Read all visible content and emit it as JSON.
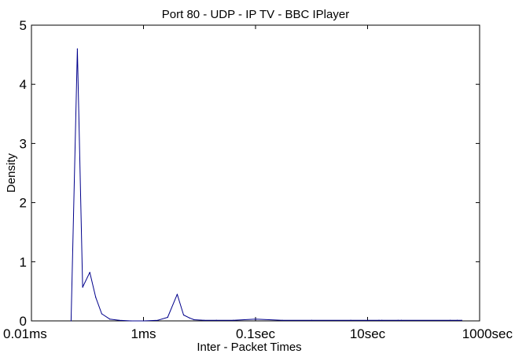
{
  "chart_data": {
    "type": "line",
    "title": "Port 80 - UDP - IP TV - BBC IPlayer",
    "xlabel": "Inter - Packet Times",
    "ylabel": "Density",
    "x_scale": "log",
    "xlim": [
      "0.01ms",
      "1000sec"
    ],
    "ylim": [
      0,
      5
    ],
    "x_ticks": [
      "0.01ms",
      "1ms",
      "0.1sec",
      "10sec",
      "1000sec"
    ],
    "y_ticks": [
      "0",
      "1",
      "2",
      "3",
      "4",
      "5"
    ],
    "grid": false,
    "line_color": "#00008b",
    "series": [
      {
        "x": [
          "0.051ms",
          "0.066ms",
          "0.082ms",
          "0.11ms",
          "0.14ms",
          "0.18ms",
          "0.25ms",
          "0.37ms",
          "0.6ms",
          "1ms",
          "1.8ms",
          "2.7ms",
          "4ms",
          "5.2ms",
          "6.6ms",
          "8ms",
          "12ms",
          "20ms",
          "40ms",
          "0.1sec",
          "0.3sec",
          "1sec",
          "5sec",
          "10sec",
          "16sec",
          "18sec",
          "35sec",
          "40sec",
          "300sec",
          "400sec",
          "480sec"
        ],
        "values": [
          0,
          4.6,
          0.57,
          0.82,
          0.4,
          0.12,
          0.03,
          0.01,
          0,
          0,
          0.01,
          0.06,
          0.45,
          0.1,
          0.05,
          0.02,
          0.01,
          0.01,
          0.01,
          0.03,
          0.01,
          0.01,
          0.01,
          0.01,
          0.01,
          0.01,
          0.01,
          0.01,
          0.01,
          0.01,
          0.01
        ]
      }
    ]
  }
}
